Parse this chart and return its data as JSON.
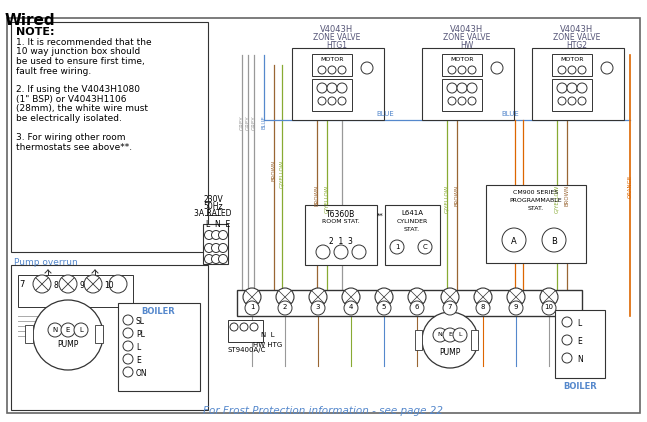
{
  "title": "Wired",
  "bg_color": "#ffffff",
  "note_title": "NOTE:",
  "note_lines": [
    "1. It is recommended that the",
    "10 way junction box should",
    "be used to ensure first time,",
    "fault free wiring.",
    "",
    "2. If using the V4043H1080",
    "(1\" BSP) or V4043H1106",
    "(28mm), the white wire must",
    "be electrically isolated.",
    "",
    "3. For wiring other room",
    "thermostats see above**."
  ],
  "pump_overrun_label": "Pump overrun",
  "frost_note": "For Frost Protection information - see page 22",
  "valve_labels": [
    [
      "V4043H",
      "ZONE VALVE",
      "HTG1"
    ],
    [
      "V4043H",
      "ZONE VALVE",
      "HW"
    ],
    [
      "V4043H",
      "ZONE VALVE",
      "HTG2"
    ]
  ],
  "text_color": "#555577",
  "wire_grey": "#999999",
  "wire_blue": "#5588cc",
  "wire_brown": "#996633",
  "wire_gyellow": "#88aa33",
  "wire_orange": "#dd6600",
  "line_color": "#333333",
  "frost_color": "#5588cc"
}
